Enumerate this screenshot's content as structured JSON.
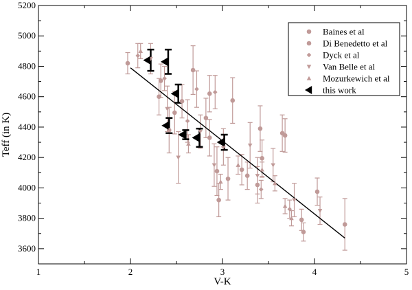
{
  "chart_data": {
    "type": "scatter",
    "xlabel": "V-K",
    "ylabel": "Teff (in K)",
    "xlim": [
      1,
      5
    ],
    "ylim": [
      3500,
      5200
    ],
    "xticks": [
      1,
      2,
      3,
      4,
      5
    ],
    "yticks": [
      3600,
      3800,
      4000,
      4200,
      4400,
      4600,
      4800,
      5000,
      5200
    ],
    "xtick_labels": [
      "1",
      "2",
      "3",
      "4",
      "5"
    ],
    "ytick_labels": [
      "3600",
      "3800",
      "4000",
      "4200",
      "4400",
      "4600",
      "4800",
      "5000",
      "5200"
    ],
    "grid": false,
    "legend_position": "top-right",
    "colors": {
      "literature": "#c09a98",
      "this_work": "#000000",
      "fit_line": "#000000"
    },
    "series": [
      {
        "name": "Baines et al",
        "marker": "circle",
        "points": [
          {
            "x": 1.97,
            "y": 4820,
            "err": 70
          },
          {
            "x": 2.33,
            "y": 4705,
            "err": 110
          },
          {
            "x": 2.42,
            "y": 4380,
            "err": 150
          },
          {
            "x": 2.48,
            "y": 4495,
            "err": 140
          },
          {
            "x": 2.68,
            "y": 4775,
            "err": 160
          },
          {
            "x": 2.82,
            "y": 4460,
            "err": 130
          },
          {
            "x": 2.86,
            "y": 4330,
            "err": 120
          },
          {
            "x": 2.94,
            "y": 4110,
            "err": 160
          },
          {
            "x": 2.96,
            "y": 3920,
            "err": 110
          },
          {
            "x": 3.06,
            "y": 4060,
            "err": 140
          },
          {
            "x": 3.11,
            "y": 4575,
            "err": 150
          },
          {
            "x": 3.27,
            "y": 4080,
            "err": 90
          },
          {
            "x": 3.41,
            "y": 4390,
            "err": 150
          },
          {
            "x": 3.43,
            "y": 4195,
            "err": 120
          },
          {
            "x": 3.65,
            "y": 4360,
            "err": 120
          },
          {
            "x": 3.68,
            "y": 4345,
            "err": 110
          },
          {
            "x": 3.86,
            "y": 3790,
            "err": 70
          },
          {
            "x": 4.03,
            "y": 3975,
            "err": 90
          },
          {
            "x": 4.33,
            "y": 3760,
            "err": 170
          }
        ]
      },
      {
        "name": "Di Benedetto et al",
        "marker": "circle",
        "points": [
          {
            "x": 2.31,
            "y": 4600,
            "err": 120
          },
          {
            "x": 2.56,
            "y": 4570,
            "err": 110
          },
          {
            "x": 2.86,
            "y": 4620,
            "err": 120
          },
          {
            "x": 3.21,
            "y": 4120,
            "err": 100
          },
          {
            "x": 3.38,
            "y": 4020,
            "err": 120
          },
          {
            "x": 3.88,
            "y": 3710,
            "err": 60
          }
        ]
      },
      {
        "name": "Dyck et al",
        "marker": "diamond",
        "points": [
          {
            "x": 2.08,
            "y": 4870,
            "err": 80
          },
          {
            "x": 2.37,
            "y": 4720,
            "err": 80
          },
          {
            "x": 2.62,
            "y": 4440,
            "err": 140
          },
          {
            "x": 2.72,
            "y": 4650,
            "err": 120
          },
          {
            "x": 2.92,
            "y": 4630,
            "err": 110
          },
          {
            "x": 3.01,
            "y": 4270,
            "err": 120
          },
          {
            "x": 3.42,
            "y": 3990,
            "err": 60
          },
          {
            "x": 3.73,
            "y": 3860,
            "err": 60
          }
        ]
      },
      {
        "name": "Van Belle et al",
        "marker": "triangle-down",
        "points": [
          {
            "x": 2.22,
            "y": 4850,
            "err": 100
          },
          {
            "x": 2.4,
            "y": 4520,
            "err": 150
          },
          {
            "x": 2.52,
            "y": 4200,
            "err": 170
          },
          {
            "x": 2.76,
            "y": 4370,
            "err": 110
          },
          {
            "x": 2.91,
            "y": 4150,
            "err": 140
          },
          {
            "x": 3.3,
            "y": 4280,
            "err": 150
          },
          {
            "x": 3.38,
            "y": 4080,
            "err": 120
          },
          {
            "x": 3.55,
            "y": 4150,
            "err": 110
          },
          {
            "x": 3.78,
            "y": 3920,
            "err": 110
          },
          {
            "x": 4.06,
            "y": 3850,
            "err": 90
          }
        ]
      },
      {
        "name": "Mozurkewich et al",
        "marker": "triangle-up",
        "points": [
          {
            "x": 2.11,
            "y": 4900,
            "err": 50
          },
          {
            "x": 2.63,
            "y": 4290,
            "err": 60
          },
          {
            "x": 2.98,
            "y": 4040,
            "err": 50
          },
          {
            "x": 3.17,
            "y": 4150,
            "err": 60
          },
          {
            "x": 3.43,
            "y": 4120,
            "err": 50
          },
          {
            "x": 3.57,
            "y": 4030,
            "err": 50
          },
          {
            "x": 3.68,
            "y": 3880,
            "err": 50
          },
          {
            "x": 3.75,
            "y": 3800,
            "err": 50
          }
        ]
      },
      {
        "name": "this work",
        "marker": "triangle-left",
        "points": [
          {
            "x": 2.22,
            "y": 4840,
            "err": 70
          },
          {
            "x": 2.41,
            "y": 4830,
            "err": 80
          },
          {
            "x": 2.52,
            "y": 4620,
            "err": 60
          },
          {
            "x": 2.42,
            "y": 4410,
            "err": 50
          },
          {
            "x": 2.6,
            "y": 4350,
            "err": 30
          },
          {
            "x": 2.75,
            "y": 4330,
            "err": 60
          },
          {
            "x": 3.02,
            "y": 4300,
            "err": 50
          }
        ]
      }
    ],
    "fit_line": {
      "x": [
        2.0,
        4.33
      ],
      "y": [
        4790,
        3670
      ]
    }
  }
}
